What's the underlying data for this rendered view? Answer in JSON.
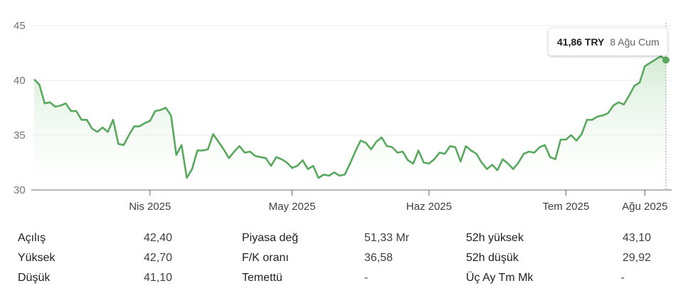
{
  "tooltip": {
    "price": "41,86 TRY",
    "date": "8 Ağu Cum"
  },
  "chart_data": {
    "type": "area",
    "ylim": [
      30,
      45
    ],
    "yticks": [
      30,
      35,
      40,
      45
    ],
    "ytick_labels": [
      "30",
      "35",
      "40",
      "45"
    ],
    "xticks": [
      "Nis 2025",
      "May 2025",
      "Haz 2025",
      "Tem 2025",
      "Ağu 2025"
    ],
    "line_color": "#5aa85f",
    "fill_color": "#e8f4e8",
    "values": [
      40.1,
      39.6,
      37.9,
      38.0,
      37.6,
      37.7,
      37.9,
      37.2,
      37.2,
      36.4,
      36.4,
      35.6,
      35.3,
      35.7,
      35.3,
      36.4,
      34.2,
      34.1,
      35.0,
      35.8,
      35.8,
      36.1,
      36.3,
      37.2,
      37.3,
      37.5,
      36.8,
      33.2,
      34.1,
      31.1,
      31.9,
      33.6,
      33.6,
      33.7,
      35.1,
      34.4,
      33.7,
      32.9,
      33.5,
      34.0,
      33.4,
      33.5,
      33.1,
      33.0,
      32.9,
      32.2,
      33.0,
      32.8,
      32.5,
      32.0,
      32.2,
      32.7,
      31.9,
      32.2,
      31.1,
      31.4,
      31.3,
      31.6,
      31.3,
      31.4,
      32.4,
      33.5,
      34.5,
      34.3,
      33.7,
      34.4,
      34.8,
      34.0,
      33.9,
      33.4,
      33.5,
      32.7,
      32.4,
      33.6,
      32.5,
      32.4,
      32.8,
      33.4,
      33.3,
      34.0,
      33.9,
      32.6,
      34.0,
      33.6,
      33.3,
      32.5,
      31.9,
      32.3,
      31.8,
      32.8,
      32.4,
      31.9,
      32.5,
      33.3,
      33.5,
      33.4,
      33.9,
      34.1,
      33.0,
      32.8,
      34.6,
      34.6,
      35.0,
      34.5,
      35.1,
      36.4,
      36.4,
      36.7,
      36.8,
      37.0,
      37.7,
      38.0,
      37.8,
      38.6,
      39.5,
      39.8,
      41.3,
      41.6,
      41.9,
      42.2,
      41.86
    ],
    "xtick_index": [
      22,
      49,
      75,
      101,
      116
    ]
  },
  "stats": [
    {
      "label": "Açılış",
      "value": "42,40"
    },
    {
      "label": "Yüksek",
      "value": "42,70"
    },
    {
      "label": "Düşük",
      "value": "41,10"
    },
    {
      "label": "Piyasa değ",
      "value": "51,33 Mr"
    },
    {
      "label": "F/K oranı",
      "value": "36,58"
    },
    {
      "label": "Temettü",
      "value": "-"
    },
    {
      "label": "52h yüksek",
      "value": "43,10"
    },
    {
      "label": "52h düşük",
      "value": "29,92"
    },
    {
      "label": "Üç Ay Tm Mk",
      "value": "-"
    }
  ]
}
